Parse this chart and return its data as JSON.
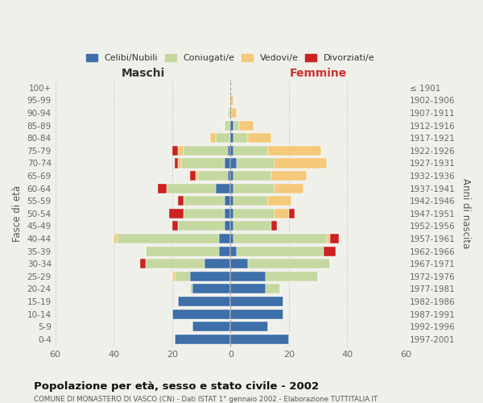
{
  "age_groups": [
    "0-4",
    "5-9",
    "10-14",
    "15-19",
    "20-24",
    "25-29",
    "30-34",
    "35-39",
    "40-44",
    "45-49",
    "50-54",
    "55-59",
    "60-64",
    "65-69",
    "70-74",
    "75-79",
    "80-84",
    "85-89",
    "90-94",
    "95-99",
    "100+"
  ],
  "birth_years": [
    "1997-2001",
    "1992-1996",
    "1987-1991",
    "1982-1986",
    "1977-1981",
    "1972-1976",
    "1967-1971",
    "1962-1966",
    "1957-1961",
    "1952-1956",
    "1947-1951",
    "1942-1946",
    "1937-1941",
    "1932-1936",
    "1927-1931",
    "1922-1926",
    "1917-1921",
    "1912-1916",
    "1907-1911",
    "1902-1906",
    "≤ 1901"
  ],
  "male": {
    "celibi": [
      19,
      13,
      20,
      18,
      13,
      14,
      9,
      4,
      4,
      2,
      2,
      2,
      5,
      1,
      2,
      1,
      0,
      0,
      0,
      0,
      0
    ],
    "coniugati": [
      0,
      0,
      0,
      0,
      1,
      5,
      20,
      25,
      35,
      16,
      14,
      14,
      17,
      10,
      15,
      15,
      5,
      2,
      1,
      0,
      0
    ],
    "vedovi": [
      0,
      0,
      0,
      0,
      0,
      1,
      0,
      0,
      1,
      0,
      0,
      0,
      0,
      1,
      1,
      2,
      2,
      0,
      0,
      0,
      0
    ],
    "divorziati": [
      0,
      0,
      0,
      0,
      0,
      0,
      2,
      0,
      0,
      2,
      5,
      2,
      3,
      2,
      1,
      2,
      0,
      0,
      0,
      0,
      0
    ]
  },
  "female": {
    "nubili": [
      20,
      13,
      18,
      18,
      12,
      12,
      6,
      2,
      1,
      1,
      1,
      1,
      1,
      1,
      2,
      1,
      1,
      1,
      0,
      0,
      0
    ],
    "coniugate": [
      0,
      0,
      0,
      0,
      5,
      18,
      28,
      30,
      32,
      13,
      14,
      12,
      14,
      13,
      13,
      12,
      5,
      2,
      0,
      0,
      0
    ],
    "vedove": [
      0,
      0,
      0,
      0,
      0,
      0,
      0,
      0,
      1,
      0,
      5,
      8,
      10,
      12,
      18,
      18,
      8,
      5,
      2,
      1,
      0
    ],
    "divorziate": [
      0,
      0,
      0,
      0,
      0,
      0,
      0,
      4,
      3,
      2,
      2,
      0,
      0,
      0,
      0,
      0,
      0,
      0,
      0,
      0,
      0
    ]
  },
  "colors": {
    "celibi": "#3d6fa8",
    "coniugati": "#c5d8a0",
    "vedovi": "#f5c97a",
    "divorziati": "#cc2222"
  },
  "title": "Popolazione per età, sesso e stato civile - 2002",
  "subtitle": "COMUNE DI MONASTERO DI VASCO (CN) - Dati ISTAT 1° gennaio 2002 - Elaborazione TUTTITALIA.IT",
  "xlabel_left": "Maschi",
  "xlabel_right": "Femmine",
  "ylabel_left": "Fasce di età",
  "ylabel_right": "Anni di nascita",
  "legend_labels": [
    "Celibi/Nubili",
    "Coniugati/e",
    "Vedovi/e",
    "Divorziati/e"
  ],
  "xlim": 60,
  "background_color": "#f0f0eb"
}
